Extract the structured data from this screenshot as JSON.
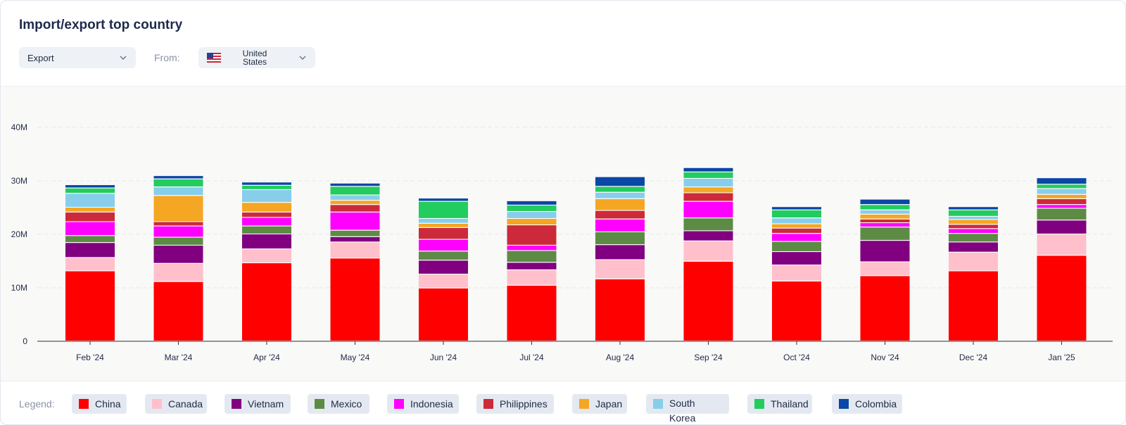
{
  "header": {
    "title": "Import/export top country"
  },
  "filters": {
    "direction_value": "Export",
    "from_label": "From:",
    "country_value": "United States"
  },
  "legend": {
    "label": "Legend:",
    "items": [
      {
        "name": "China",
        "color": "#ff0000"
      },
      {
        "name": "Canada",
        "color": "#ffc0cb"
      },
      {
        "name": "Vietnam",
        "color": "#800080"
      },
      {
        "name": "Mexico",
        "color": "#5d8b45"
      },
      {
        "name": "Indonesia",
        "color": "#ff00ff"
      },
      {
        "name": "Philippines",
        "color": "#cc2a3a"
      },
      {
        "name": "Japan",
        "color": "#f5a623"
      },
      {
        "name": "South Korea",
        "color": "#87ceeb"
      },
      {
        "name": "Thailand",
        "color": "#22cc5e"
      },
      {
        "name": "Colombia",
        "color": "#0a47a6"
      }
    ]
  },
  "chart_data": {
    "type": "bar",
    "stacked": true,
    "categories": [
      "Feb '24",
      "Mar '24",
      "Apr '24",
      "May '24",
      "Jun '24",
      "Jul '24",
      "Aug '24",
      "Sep '24",
      "Oct '24",
      "Nov '24",
      "Dec '24",
      "Jan '25"
    ],
    "y_ticks": [
      "0",
      "10M",
      "20M",
      "30M",
      "40M"
    ],
    "ylim": [
      0,
      40000000
    ],
    "series": [
      {
        "name": "China",
        "color": "#ff0000",
        "values": [
          13.1,
          11.1,
          14.6,
          15.5,
          9.9,
          10.4,
          11.6,
          14.9,
          11.2,
          12.2,
          13.1,
          16.0
        ]
      },
      {
        "name": "Canada",
        "color": "#ffc0cb",
        "values": [
          2.5,
          3.4,
          2.6,
          3.0,
          2.6,
          2.9,
          3.6,
          3.8,
          3.0,
          2.6,
          3.5,
          4.0
        ]
      },
      {
        "name": "Vietnam",
        "color": "#800080",
        "values": [
          2.8,
          3.4,
          2.8,
          1.0,
          2.6,
          1.4,
          2.8,
          1.9,
          2.5,
          4.0,
          1.9,
          2.6
        ]
      },
      {
        "name": "Mexico",
        "color": "#5d8b45",
        "values": [
          1.3,
          1.5,
          1.5,
          1.2,
          1.7,
          2.2,
          2.4,
          2.4,
          1.9,
          2.5,
          1.6,
          2.2
        ]
      },
      {
        "name": "Indonesia",
        "color": "#ff00ff",
        "values": [
          2.6,
          2.1,
          1.6,
          3.4,
          2.2,
          1.0,
          2.4,
          3.1,
          1.5,
          0.8,
          0.9,
          0.7
        ]
      },
      {
        "name": "Philippines",
        "color": "#cc2a3a",
        "values": [
          1.8,
          0.8,
          1.0,
          1.4,
          2.2,
          3.8,
          1.6,
          1.6,
          1.0,
          0.7,
          0.8,
          1.1
        ]
      },
      {
        "name": "Japan",
        "color": "#f5a623",
        "values": [
          0.9,
          4.9,
          1.8,
          0.8,
          0.8,
          1.2,
          2.2,
          1.1,
          0.8,
          0.9,
          0.9,
          0.8
        ]
      },
      {
        "name": "South Korea",
        "color": "#87ceeb",
        "values": [
          2.6,
          1.6,
          2.4,
          1.0,
          0.9,
          1.3,
          1.2,
          1.6,
          1.1,
          0.8,
          0.6,
          1.1
        ]
      },
      {
        "name": "Thailand",
        "color": "#22cc5e",
        "values": [
          1.0,
          1.5,
          0.8,
          1.6,
          3.2,
          1.2,
          1.1,
          1.2,
          1.5,
          1.0,
          1.2,
          0.8
        ]
      },
      {
        "name": "Colombia",
        "color": "#0a47a6",
        "values": [
          0.6,
          0.6,
          0.6,
          0.6,
          0.6,
          0.8,
          1.8,
          0.8,
          0.6,
          1.0,
          0.6,
          1.2
        ]
      }
    ],
    "value_unit": "M",
    "grid": true,
    "legend_position": "bottom"
  }
}
